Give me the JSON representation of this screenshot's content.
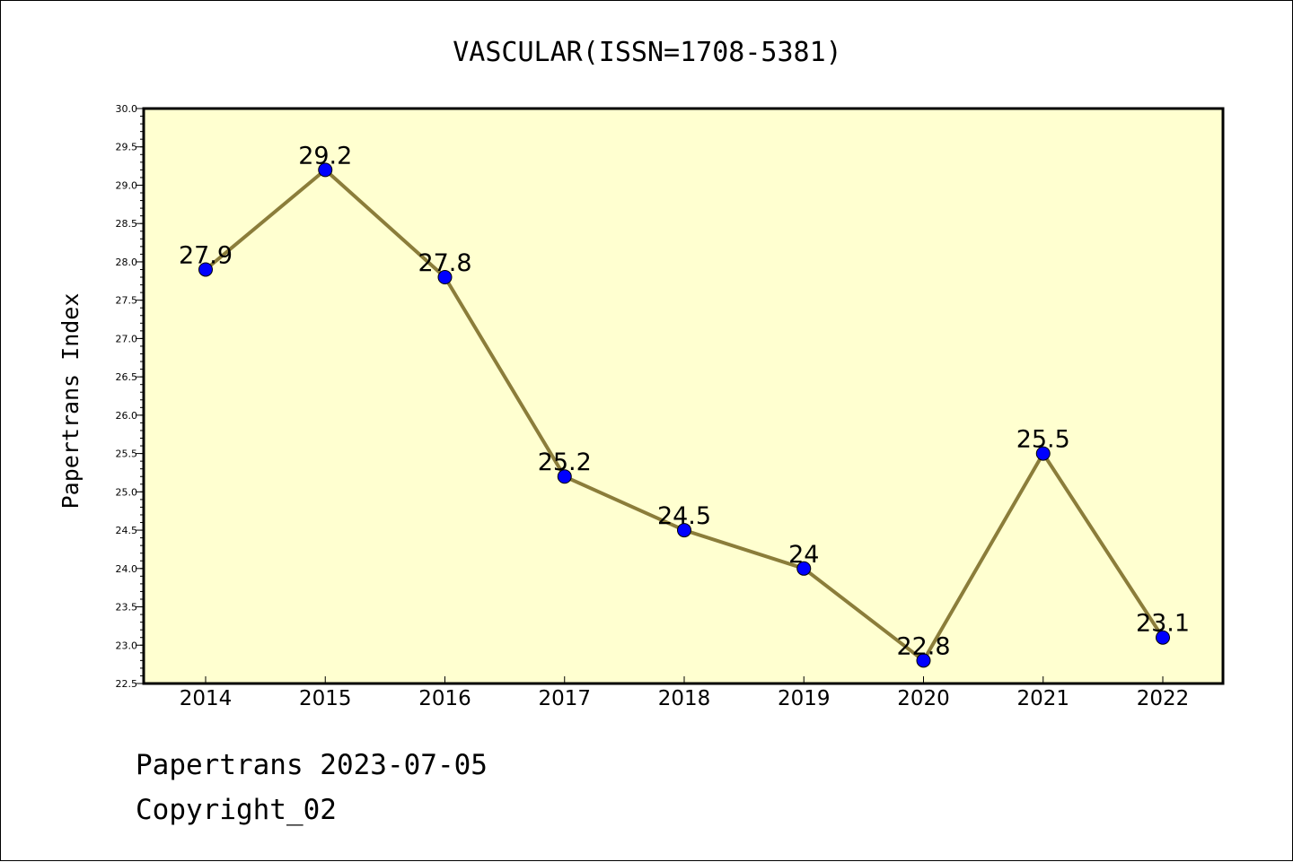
{
  "chart_data": {
    "type": "line",
    "title": "VASCULAR(ISSN=1708-5381)",
    "xlabel": "",
    "ylabel": "Papertrans Index",
    "categories": [
      "2014",
      "2015",
      "2016",
      "2017",
      "2018",
      "2019",
      "2020",
      "2021",
      "2022"
    ],
    "series": [
      {
        "values": [
          27.9,
          29.2,
          27.8,
          25.2,
          24.5,
          24,
          22.8,
          25.5,
          23.1
        ],
        "data_labels": [
          "27.9",
          "29.2",
          "27.8",
          "25.2",
          "24.5",
          "24",
          "22.8",
          "25.5",
          "23.1"
        ]
      }
    ],
    "ylim": [
      22.5,
      30.0
    ],
    "yticks": [
      "22.5",
      "23.0",
      "23.5",
      "24.0",
      "24.5",
      "25.0",
      "25.5",
      "26.0",
      "26.5",
      "27.0",
      "27.5",
      "28.0",
      "28.5",
      "29.0",
      "29.5",
      "30.0"
    ],
    "grid": false,
    "legend": "none",
    "colors": {
      "plot_background": "#ffffd0",
      "line": "#8b7d3a",
      "marker": "#0000ff"
    }
  },
  "footer": {
    "line1": "Papertrans 2023-07-05",
    "line2": "Copyright_02"
  }
}
